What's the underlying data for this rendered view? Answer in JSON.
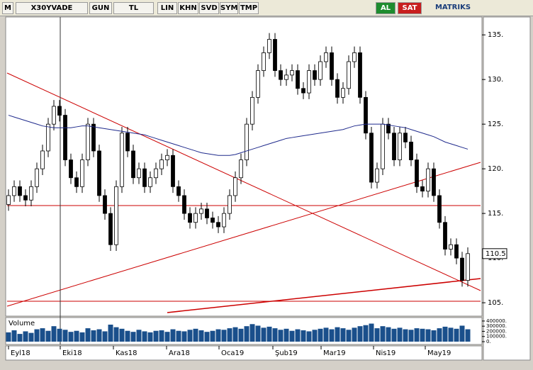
{
  "toolbar": {
    "logo": "M",
    "symbol": "X30YVADE",
    "buttons": [
      "GUN",
      "TL",
      "LIN",
      "KHN",
      "SVD",
      "SYM",
      "TMP"
    ],
    "buy": "AL",
    "sell": "SAT",
    "brand": "MATRIKS"
  },
  "chart_data": {
    "type": "candlestick",
    "x_labels": [
      "Eyl18",
      "Eki18",
      "Kas18",
      "Ara18",
      "Oca19",
      "Şub19",
      "Mar19",
      "Nis19",
      "May19"
    ],
    "open": [
      116,
      117,
      118,
      117,
      116.5,
      118,
      120,
      122,
      125,
      127,
      126,
      121,
      119,
      118,
      121,
      125,
      122,
      117,
      115,
      111.5,
      118,
      124,
      122,
      119,
      120,
      118,
      119,
      120,
      121,
      121.5,
      118,
      117,
      115,
      114,
      115,
      115.5,
      114.5,
      114,
      113.5,
      115,
      117,
      119,
      121,
      125,
      128,
      131,
      133,
      134.5,
      131,
      130,
      130.5,
      131,
      129,
      128.5,
      131,
      130,
      132,
      133,
      130,
      128,
      129,
      132,
      133,
      128,
      124,
      118.5,
      120,
      125,
      124,
      121,
      124,
      123,
      121,
      118,
      117.5,
      120,
      117,
      114,
      111,
      111.5,
      110,
      107.5
    ],
    "high": [
      117.7,
      118.7,
      118.7,
      117.7,
      118.7,
      120.7,
      122.7,
      125.7,
      127.7,
      127.7,
      126.7,
      121.7,
      119.7,
      121.7,
      125.7,
      125.7,
      122.7,
      117.7,
      115.7,
      118.7,
      124.7,
      124.7,
      122.7,
      120.7,
      120.7,
      119.7,
      120.7,
      121.7,
      122.2,
      122.2,
      118.7,
      117.7,
      115.7,
      115.7,
      116.2,
      116.2,
      115.2,
      114.7,
      115.7,
      117.7,
      119.7,
      121.7,
      125.7,
      128.7,
      131.7,
      133.7,
      135.2,
      135.2,
      131.7,
      131.2,
      131.7,
      131.7,
      129.7,
      131.7,
      131.7,
      132.7,
      133.7,
      133.7,
      130.7,
      129.7,
      132.7,
      133.7,
      133.7,
      128.7,
      124.7,
      120.7,
      125.7,
      125.7,
      124.7,
      124.7,
      124.7,
      123.7,
      121.7,
      118.7,
      120.7,
      120.7,
      117.7,
      114.7,
      112.2,
      112.2,
      110.7,
      111.2
    ],
    "low": [
      115.3,
      116.3,
      116.3,
      115.8,
      115.8,
      117.3,
      119.3,
      121.3,
      124.3,
      125.3,
      120.3,
      118.3,
      117.3,
      117.3,
      120.3,
      121.3,
      116.3,
      114.3,
      110.8,
      110.8,
      117.3,
      121.3,
      118.3,
      118.3,
      117.3,
      117.3,
      118.3,
      119.3,
      120.3,
      117.3,
      116.3,
      114.3,
      113.3,
      113.3,
      114.3,
      113.8,
      113.3,
      112.8,
      112.8,
      114.3,
      116.3,
      118.3,
      120.3,
      124.3,
      127.3,
      130.3,
      132.3,
      130.3,
      129.3,
      129.3,
      129.8,
      128.3,
      127.8,
      127.8,
      129.3,
      129.3,
      131.3,
      129.3,
      127.3,
      127.3,
      128.3,
      131.3,
      127.3,
      123.3,
      117.8,
      117.8,
      119.3,
      123.3,
      120.3,
      120.3,
      122.3,
      120.3,
      117.3,
      116.8,
      116.8,
      116.3,
      113.3,
      110.3,
      110.3,
      109.3,
      106.8,
      106.8
    ],
    "close": [
      117,
      118,
      117,
      116.5,
      118,
      120,
      122,
      125,
      127,
      126,
      121,
      119,
      118,
      121,
      125,
      122,
      117,
      115,
      111.5,
      118,
      124,
      122,
      119,
      120,
      118,
      119,
      120,
      121,
      121.5,
      118,
      117,
      115,
      114,
      115,
      115.5,
      114.5,
      114,
      113.5,
      115,
      117,
      119,
      121,
      125,
      128,
      131,
      133,
      134.5,
      131,
      130,
      130.5,
      131,
      129,
      128.5,
      131,
      130,
      132,
      133,
      130,
      128,
      129,
      132,
      133,
      128,
      124,
      118.5,
      120,
      125,
      124,
      121,
      124,
      123,
      121,
      118,
      117.5,
      120,
      117,
      114,
      111,
      111.5,
      110,
      107.5,
      110.5
    ],
    "moving_average": {
      "color": "#1f2a8c",
      "values": [
        126,
        125.8,
        125.6,
        125.4,
        125.2,
        125.0,
        124.8,
        124.7,
        124.6,
        124.6,
        124.6,
        124.6,
        124.7,
        124.8,
        124.8,
        124.7,
        124.6,
        124.5,
        124.4,
        124.3,
        124.2,
        124.1,
        124.0,
        123.9,
        123.8,
        123.6,
        123.4,
        123.2,
        123.0,
        122.8,
        122.6,
        122.4,
        122.2,
        122.0,
        121.8,
        121.7,
        121.6,
        121.5,
        121.5,
        121.5,
        121.6,
        121.8,
        122.0,
        122.2,
        122.4,
        122.6,
        122.8,
        123.0,
        123.2,
        123.4,
        123.5,
        123.6,
        123.7,
        123.8,
        123.9,
        124.0,
        124.1,
        124.2,
        124.3,
        124.4,
        124.6,
        124.8,
        124.9,
        125.0,
        125.0,
        125.0,
        125.0,
        124.9,
        124.8,
        124.7,
        124.6,
        124.4,
        124.2,
        124.0,
        123.8,
        123.6,
        123.3,
        123.0,
        122.8,
        122.6,
        122.4,
        122.2
      ]
    },
    "ylim": [
      103.5,
      137
    ],
    "yticks": [
      {
        "value": 105,
        "label": "105."
      },
      {
        "value": 110,
        "label": "110."
      },
      {
        "value": 115,
        "label": "115."
      },
      {
        "value": 120,
        "label": "120."
      },
      {
        "value": 125,
        "label": "125."
      },
      {
        "value": 130,
        "label": "130."
      },
      {
        "value": 135,
        "label": "135."
      }
    ],
    "last_price": 110.5,
    "volume": {
      "label": "Volume",
      "color": "#1a4f8b",
      "values": [
        180000,
        220000,
        150000,
        200000,
        170000,
        240000,
        260000,
        210000,
        300000,
        250000,
        230000,
        190000,
        210000,
        180000,
        260000,
        220000,
        240000,
        200000,
        330000,
        280000,
        250000,
        210000,
        190000,
        230000,
        200000,
        180000,
        210000,
        220000,
        190000,
        240000,
        210000,
        200000,
        230000,
        250000,
        220000,
        190000,
        210000,
        240000,
        230000,
        260000,
        280000,
        250000,
        300000,
        340000,
        310000,
        270000,
        290000,
        260000,
        230000,
        250000,
        210000,
        240000,
        220000,
        200000,
        230000,
        250000,
        270000,
        240000,
        280000,
        260000,
        230000,
        270000,
        300000,
        320000,
        350000,
        260000,
        300000,
        280000,
        250000,
        270000,
        240000,
        230000,
        260000,
        250000,
        240000,
        220000,
        260000,
        290000,
        270000,
        250000,
        310000,
        240000
      ],
      "ylim": [
        0,
        440000
      ],
      "yticks": [
        {
          "value": 0,
          "label": "0."
        },
        {
          "value": 100000,
          "label": "100000."
        },
        {
          "value": 200000,
          "label": "200000."
        },
        {
          "value": 300000,
          "label": "300000."
        },
        {
          "value": 400000,
          "label": "400000."
        }
      ]
    }
  }
}
